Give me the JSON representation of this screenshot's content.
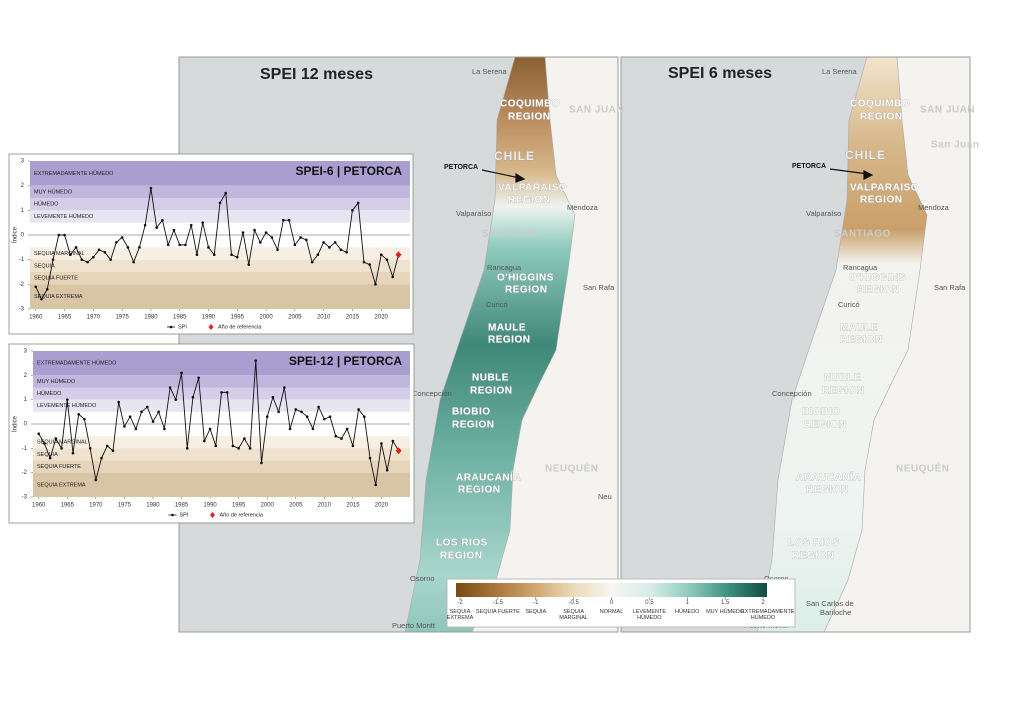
{
  "maps": [
    {
      "title": "SPEI 12 meses",
      "labels": [
        "La Serena",
        "COQUIMBO",
        "REGION",
        "SAN JUAN",
        "CHILE",
        "PETORCA",
        "VALPARAISO",
        "REGION",
        "Mendoza",
        "Valparaíso",
        "SANTIAGO",
        "Rancagua",
        "O'HIGGINS",
        "REGION",
        "San Rafa",
        "Curicó",
        "MAULE",
        "REGION",
        "Concepción",
        "NUBLE",
        "REGION",
        "BIOBIO",
        "REGION",
        "NEUQUÉN",
        "ARAUCANÍA",
        "REGION",
        "Neu",
        "LOS RIOS",
        "REGION",
        "Osorno",
        "Puerto Montt"
      ]
    },
    {
      "title": "SPEI 6 meses",
      "labels": [
        "La Serena",
        "COQUIMBO",
        "REGION",
        "SAN JUAN",
        "San Juan",
        "CHILE",
        "PETORCA",
        "VALPARAISO",
        "REGION",
        "Mendoza",
        "Valparaíso",
        "SANTIAGO",
        "Rancagua",
        "O'HIGGINS",
        "REGION",
        "San Rafa",
        "Curicó",
        "MAULE",
        "REGION",
        "Concepción",
        "NUBLE",
        "REGION",
        "BIOBIO",
        "REGION",
        "NEUQUÉN",
        "ARAUCANÍA",
        "REGION",
        "LOS RIOS",
        "REGION",
        "Osorno",
        "San Carlos de",
        "Bariloche",
        "Puerto Montt"
      ]
    }
  ],
  "colorbar": {
    "ticks": [
      -2,
      -1.5,
      -1,
      -0.5,
      0,
      0.5,
      1,
      1.5,
      2
    ],
    "labels": [
      "SEQUIA EXTREMA",
      "SEQUIA FUERTE",
      "SEQUIA",
      "SEQUIA MARGINAL",
      "NORMAL",
      "LEVEMENTE HÚMEDO",
      "HÚMEDO",
      "MUY HÚMEDO",
      "EXTREMADAMENTE HÚMEDO"
    ],
    "colors": [
      "#7a4a14",
      "#a8753a",
      "#cfa56c",
      "#ecd9b8",
      "#f7f6f2",
      "#d6ece7",
      "#8fcbbd",
      "#3f9181",
      "#0f4a3f"
    ]
  },
  "chart_data": [
    {
      "type": "line",
      "title": "SPEI-6 | PETORCA",
      "ylabel": "Índice",
      "x": [
        1960,
        1961,
        1962,
        1963,
        1964,
        1965,
        1966,
        1967,
        1968,
        1969,
        1970,
        1971,
        1972,
        1973,
        1974,
        1975,
        1976,
        1977,
        1978,
        1979,
        1980,
        1981,
        1982,
        1983,
        1984,
        1985,
        1986,
        1987,
        1988,
        1989,
        1990,
        1991,
        1992,
        1993,
        1994,
        1995,
        1996,
        1997,
        1998,
        1999,
        2000,
        2001,
        2002,
        2003,
        2004,
        2005,
        2006,
        2007,
        2008,
        2009,
        2010,
        2011,
        2012,
        2013,
        2014,
        2015,
        2016,
        2017,
        2018,
        2019,
        2020,
        2021,
        2022,
        2023
      ],
      "series": [
        {
          "name": "SPI",
          "color": "#111111",
          "values": [
            -2.1,
            -2.6,
            -2.2,
            -1.0,
            0.0,
            0.0,
            -0.8,
            -0.5,
            -1.0,
            -1.1,
            -0.9,
            -0.6,
            -0.7,
            -1.0,
            -0.3,
            -0.1,
            -0.5,
            -1.1,
            -0.5,
            0.4,
            1.9,
            0.3,
            0.6,
            -0.4,
            0.2,
            -0.4,
            -0.4,
            0.4,
            -0.8,
            0.5,
            -0.5,
            -0.8,
            1.3,
            1.7,
            -0.8,
            -0.9,
            0.1,
            -1.2,
            0.2,
            -0.3,
            0.1,
            -0.1,
            -0.6,
            0.6,
            0.6,
            -0.4,
            -0.1,
            -0.2,
            -1.1,
            -0.8,
            -0.3,
            -0.5,
            -0.3,
            -0.6,
            -0.7,
            1.0,
            1.3,
            -1.1,
            -1.2,
            -2.0,
            -0.8,
            -1.0,
            -1.7,
            -0.8
          ]
        },
        {
          "name": "Año de referencia",
          "color": "#e02020",
          "x": [
            2023
          ],
          "values": [
            -0.8
          ]
        }
      ],
      "bands": [
        {
          "label": "EXTREMADAMENTE HÚMEDO",
          "from": 2,
          "to": 3,
          "color": "#a89fd0"
        },
        {
          "label": "MUY HÚMEDO",
          "from": 1.5,
          "to": 2,
          "color": "#bfb7de"
        },
        {
          "label": "HÚMEDO",
          "from": 1,
          "to": 1.5,
          "color": "#d4cee9"
        },
        {
          "label": "LEVEMENTE HÚMEDO",
          "from": 0.5,
          "to": 1,
          "color": "#e8e5f3"
        },
        {
          "label": "SEQUIA MARGINAL",
          "from": -1,
          "to": -0.5,
          "color": "#f7efe4"
        },
        {
          "label": "SEQUIA",
          "from": -1.5,
          "to": -1,
          "color": "#efe3d0"
        },
        {
          "label": "SEQUIA FUERTE",
          "from": -2,
          "to": -1.5,
          "color": "#e6d4bb"
        },
        {
          "label": "SEQUIA EXTREMA",
          "from": -3,
          "to": -2,
          "color": "#d9c4a5"
        }
      ],
      "xlim": [
        1959,
        2025
      ],
      "ylim": [
        -3,
        3
      ],
      "xticks": [
        1960,
        1965,
        1970,
        1975,
        1980,
        1985,
        1990,
        1995,
        2000,
        2005,
        2010,
        2015,
        2020
      ],
      "yticks": [
        -3,
        -2,
        -1,
        0,
        1,
        2,
        3
      ]
    },
    {
      "type": "line",
      "title": "SPEI-12 | PETORCA",
      "ylabel": "Índice",
      "x": [
        1960,
        1961,
        1962,
        1963,
        1964,
        1965,
        1966,
        1967,
        1968,
        1969,
        1970,
        1971,
        1972,
        1973,
        1974,
        1975,
        1976,
        1977,
        1978,
        1979,
        1980,
        1981,
        1982,
        1983,
        1984,
        1985,
        1986,
        1987,
        1988,
        1989,
        1990,
        1991,
        1992,
        1993,
        1994,
        1995,
        1996,
        1997,
        1998,
        1999,
        2000,
        2001,
        2002,
        2003,
        2004,
        2005,
        2006,
        2007,
        2008,
        2009,
        2010,
        2011,
        2012,
        2013,
        2014,
        2015,
        2016,
        2017,
        2018,
        2019,
        2020,
        2021,
        2022,
        2023
      ],
      "series": [
        {
          "name": "SPI",
          "color": "#111111",
          "values": [
            -0.4,
            -0.8,
            -1.4,
            -0.6,
            -1.0,
            1.0,
            -1.2,
            0.4,
            0.2,
            -1.0,
            -2.3,
            -1.4,
            -0.9,
            -1.1,
            0.9,
            -0.1,
            0.3,
            -0.2,
            0.5,
            0.7,
            0.1,
            0.5,
            -0.2,
            1.5,
            1.0,
            2.1,
            -1.0,
            1.1,
            1.9,
            -0.7,
            -0.2,
            -0.9,
            1.3,
            1.3,
            -0.9,
            -1.0,
            -0.6,
            -1.0,
            2.6,
            -1.6,
            0.3,
            1.1,
            0.5,
            1.5,
            -0.2,
            0.6,
            0.5,
            0.3,
            -0.2,
            0.7,
            0.2,
            0.3,
            -0.5,
            -0.6,
            -0.2,
            -0.9,
            0.6,
            0.3,
            -1.4,
            -2.5,
            -0.8,
            -1.9,
            -0.7,
            -1.1
          ]
        },
        {
          "name": "Año de referencia",
          "color": "#e02020",
          "x": [
            2023
          ],
          "values": [
            -1.1
          ]
        }
      ],
      "bands": [
        {
          "label": "EXTREMADAMENTE HÚMEDO",
          "from": 2,
          "to": 3,
          "color": "#a89fd0"
        },
        {
          "label": "MUY HÚMEDO",
          "from": 1.5,
          "to": 2,
          "color": "#bfb7de"
        },
        {
          "label": "HÚMEDO",
          "from": 1,
          "to": 1.5,
          "color": "#d4cee9"
        },
        {
          "label": "LEVEMENTE HÚMEDO",
          "from": 0.5,
          "to": 1,
          "color": "#e8e5f3"
        },
        {
          "label": "SEQUIA MARGINAL",
          "from": -1,
          "to": -0.5,
          "color": "#f7efe4"
        },
        {
          "label": "SEQUIA",
          "from": -1.5,
          "to": -1,
          "color": "#efe3d0"
        },
        {
          "label": "SEQUIA FUERTE",
          "from": -2,
          "to": -1.5,
          "color": "#e6d4bb"
        },
        {
          "label": "SEQUIA EXTREMA",
          "from": -3,
          "to": -2,
          "color": "#d9c4a5"
        }
      ],
      "xlim": [
        1959,
        2025
      ],
      "ylim": [
        -3,
        3
      ],
      "xticks": [
        1960,
        1965,
        1970,
        1975,
        1980,
        1985,
        1990,
        1995,
        2000,
        2005,
        2010,
        2015,
        2020
      ],
      "yticks": [
        -3,
        -2,
        -1,
        0,
        1,
        2,
        3
      ]
    }
  ]
}
